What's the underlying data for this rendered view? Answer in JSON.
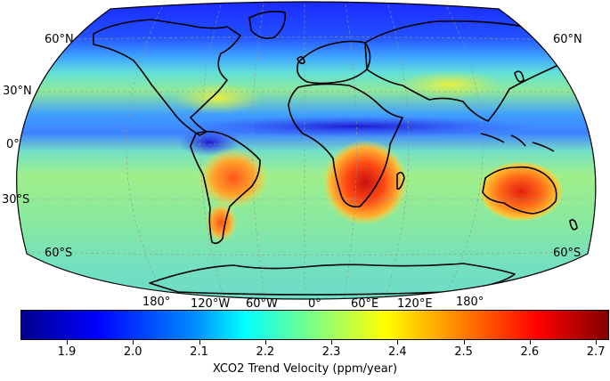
{
  "map": {
    "projection": "Robinson",
    "lat_labels_left": [
      "60°N",
      "30°N",
      "0°",
      "30°S",
      "60°S"
    ],
    "lat_labels_right": [
      "60°N",
      "60°S"
    ],
    "lon_labels": [
      "180°",
      "120°W",
      "60°W",
      "0°",
      "60°E",
      "120°E",
      "180°"
    ],
    "gridlines": true
  },
  "colorbar": {
    "label": "XCO2 Trend Velocity (ppm/year)",
    "ticks": [
      "1.9",
      "2.0",
      "2.1",
      "2.2",
      "2.3",
      "2.4",
      "2.5",
      "2.6",
      "2.7"
    ],
    "range": [
      1.83,
      2.72
    ],
    "colormap": [
      "#00008b",
      "#0000ff",
      "#0080ff",
      "#00ffff",
      "#80ff80",
      "#ffff00",
      "#ff8000",
      "#ff0000",
      "#800000"
    ]
  }
}
